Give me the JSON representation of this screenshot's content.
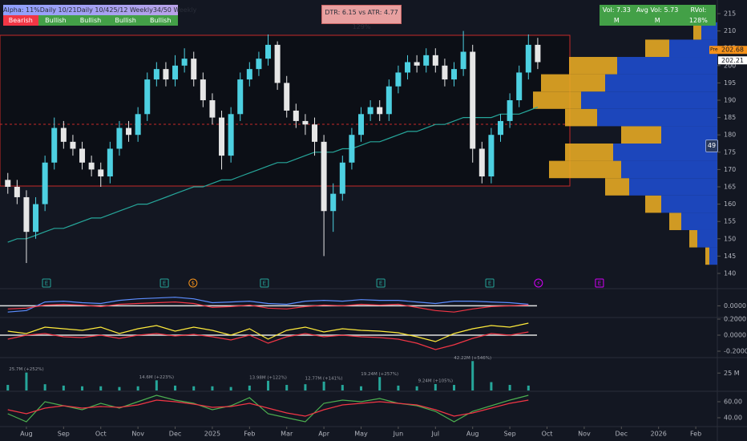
{
  "header": {
    "indicators": [
      "Alpha: 11%",
      "Daily 10/21",
      "Daily 10/42",
      "5/12 Weekly",
      "34/50 Weekly"
    ],
    "signals": [
      {
        "label": "Bearish",
        "color": "#f23645"
      },
      {
        "label": "Bullish",
        "color": "#43a047"
      },
      {
        "label": "Bullish",
        "color": "#43a047"
      },
      {
        "label": "Bullish",
        "color": "#43a047"
      },
      {
        "label": "Bullish",
        "color": "#43a047"
      }
    ],
    "dtr": "DTR: 6.15 vs ATR: 4.77 129%",
    "volume_stats": [
      "Vol: 7.33 M",
      "Avg Vol: 5.73 M",
      "RVol: 128%"
    ],
    "badge": 49,
    "pre_label": "Pre"
  },
  "chart_data": [
    {
      "type": "candlestick",
      "x": [
        -0.5,
        -0.25,
        0,
        0.25,
        0.5,
        0.75,
        1,
        1.25,
        1.5,
        1.75,
        2,
        2.25,
        2.5,
        2.75,
        3,
        3.25,
        3.5,
        3.75,
        4,
        4.25,
        4.5,
        4.75,
        5,
        5.25,
        5.5,
        5.75,
        6,
        6.25,
        6.5,
        6.75,
        7,
        7.25,
        7.5,
        7.75,
        8,
        8.25,
        8.5,
        8.75,
        9,
        9.25,
        9.5,
        9.75,
        10,
        10.25,
        10.5,
        10.75,
        11,
        11.25,
        11.5,
        11.75,
        12,
        12.25,
        12.5,
        12.75,
        13,
        13.25,
        13.5,
        13.75
      ],
      "open": [
        167,
        165,
        162,
        152,
        160,
        172,
        182,
        178,
        176,
        172,
        170,
        168,
        176,
        182,
        180,
        186,
        196,
        199,
        196,
        200,
        202,
        196,
        190,
        185,
        174,
        186,
        196,
        199,
        202,
        206,
        195,
        187,
        184,
        183,
        178,
        158,
        163,
        172,
        180,
        186,
        188,
        186,
        194,
        198,
        201,
        200,
        203,
        200,
        196,
        199,
        204,
        176,
        168,
        180,
        184,
        190,
        198,
        206
      ],
      "high": [
        169,
        167,
        164,
        162,
        174,
        185,
        184,
        180,
        178,
        174,
        172,
        178,
        184,
        184,
        188,
        198,
        201,
        201,
        203,
        205,
        204,
        198,
        192,
        187,
        188,
        198,
        201,
        204,
        209,
        207,
        197,
        189,
        186,
        185,
        180,
        166,
        174,
        182,
        188,
        190,
        190,
        196,
        200,
        203,
        203,
        205,
        205,
        202,
        201,
        210,
        206,
        178,
        182,
        186,
        192,
        200,
        209,
        208
      ],
      "low": [
        163,
        160,
        143,
        150,
        158,
        170,
        176,
        174,
        170,
        168,
        165,
        166,
        174,
        178,
        178,
        184,
        194,
        194,
        194,
        198,
        194,
        188,
        183,
        170,
        172,
        184,
        194,
        197,
        200,
        193,
        185,
        182,
        180,
        174,
        145,
        152,
        161,
        170,
        178,
        184,
        184,
        184,
        192,
        196,
        198,
        198,
        198,
        194,
        194,
        197,
        172,
        166,
        166,
        178,
        182,
        188,
        196,
        199
      ],
      "close": [
        165,
        162,
        152,
        160,
        172,
        182,
        178,
        176,
        172,
        170,
        168,
        176,
        182,
        180,
        186,
        196,
        199,
        196,
        200,
        202,
        196,
        190,
        185,
        174,
        186,
        196,
        199,
        202,
        206,
        195,
        187,
        184,
        183,
        178,
        158,
        163,
        172,
        180,
        186,
        188,
        186,
        194,
        198,
        201,
        200,
        203,
        200,
        196,
        199,
        204,
        176,
        168,
        180,
        184,
        190,
        198,
        206,
        201
      ],
      "up_color": "#4dd0e1",
      "down_color": "#e6e6e6",
      "series": [
        {
          "color": "#26a69a",
          "values": [
            149,
            150,
            150,
            151,
            152,
            153,
            153,
            154,
            155,
            156,
            156,
            157,
            158,
            159,
            160,
            160,
            161,
            162,
            163,
            164,
            165,
            165,
            166,
            167,
            167,
            168,
            169,
            170,
            171,
            172,
            172,
            173,
            174,
            175,
            175,
            175,
            176,
            176,
            177,
            178,
            178,
            179,
            180,
            181,
            181,
            182,
            183,
            183,
            184,
            185,
            185,
            185,
            185,
            186,
            186,
            186,
            187,
            188
          ]
        }
      ],
      "xlim": [
        -0.71,
        18.58
      ],
      "xticks": [
        {
          "value": 0,
          "label": "Aug"
        },
        {
          "value": 1,
          "label": "Sep"
        },
        {
          "value": 2,
          "label": "Oct"
        },
        {
          "value": 3,
          "label": "Nov"
        },
        {
          "value": 4,
          "label": "Dec"
        },
        {
          "value": 5,
          "label": "2025"
        },
        {
          "value": 6,
          "label": "Feb"
        },
        {
          "value": 7,
          "label": "Mar"
        },
        {
          "value": 8,
          "label": "Apr"
        },
        {
          "value": 9,
          "label": "May"
        },
        {
          "value": 10,
          "label": "Jun"
        },
        {
          "value": 11,
          "label": "Jul"
        },
        {
          "value": 12,
          "label": "Aug"
        },
        {
          "value": 13,
          "label": "Sep"
        },
        {
          "value": 14,
          "label": "Oct"
        },
        {
          "value": 15,
          "label": "Nov"
        },
        {
          "value": 16,
          "label": "Dec"
        },
        {
          "value": 17,
          "label": "2026"
        },
        {
          "value": 18,
          "label": "Feb"
        }
      ],
      "ylim": [
        139.07,
        218.94
      ],
      "yticks": [
        140,
        145,
        150,
        155,
        160,
        165,
        170,
        175,
        180,
        185,
        190,
        195,
        200,
        205,
        210,
        215
      ],
      "price_tags": [
        {
          "value": 202.68,
          "color": "#f7931a"
        },
        {
          "value": 202.21,
          "color": "#ffffff"
        }
      ],
      "events": [
        {
          "label": "E",
          "x": 0.54,
          "color": "#26a69a"
        },
        {
          "label": "E",
          "x": 3.71,
          "color": "#26a69a"
        },
        {
          "label": "$",
          "x": 4.48,
          "color": "#f7931a"
        },
        {
          "label": "E",
          "x": 6.4,
          "color": "#26a69a"
        },
        {
          "label": "E",
          "x": 9.53,
          "color": "#26a69a"
        },
        {
          "label": "E",
          "x": 12.46,
          "color": "#26a69a"
        },
        {
          "label": "⚡",
          "x": 13.77,
          "color": "#d500f9"
        },
        {
          "label": "E",
          "x": 15.41,
          "color": "#d500f9"
        }
      ],
      "volume_profile": {
        "levels": [
          145,
          150,
          155,
          160,
          165,
          170,
          175,
          180,
          185,
          190,
          195,
          200,
          205,
          210
        ],
        "series": [
          {
            "color": "#1e4fd6",
            "values": [
              10,
              25,
              45,
              70,
              110,
              120,
              130,
              70,
              150,
              170,
              140,
              125,
              60,
              20
            ]
          },
          {
            "color": "#e5a823",
            "values": [
              5,
              10,
              15,
              20,
              30,
              90,
              60,
              50,
              40,
              60,
              80,
              60,
              30,
              10
            ]
          }
        ],
        "xlim": [
          0,
          225
        ]
      }
    },
    {
      "type": "line",
      "x": [
        -0.5,
        0,
        0.5,
        1,
        1.5,
        2,
        2.5,
        3,
        3.5,
        4,
        4.5,
        5,
        5.5,
        6,
        6.5,
        7,
        7.5,
        8,
        8.5,
        9,
        9.5,
        10,
        10.5,
        11,
        11.5,
        12,
        12.5,
        13,
        13.5
      ],
      "xlim": [
        -0.71,
        18.58
      ],
      "series": [
        {
          "color": "#5c8dff",
          "values": [
            -0.008,
            -0.006,
            0.005,
            0.006,
            0.004,
            0.003,
            0.007,
            0.009,
            0.01,
            0.011,
            0.009,
            0.004,
            0.005,
            0.006,
            0.003,
            0.002,
            0.006,
            0.007,
            0.006,
            0.008,
            0.007,
            0.007,
            0.005,
            0.003,
            0.006,
            0.006,
            0.005,
            0.004,
            0.002
          ]
        },
        {
          "color": "#f23645",
          "values": [
            -0.004,
            -0.003,
            0.001,
            0.002,
            0.001,
            -0.001,
            0.002,
            0.003,
            0.004,
            0.005,
            0.003,
            -0.002,
            -0.001,
            0.001,
            -0.003,
            -0.004,
            -0.001,
            0.001,
            0,
            0.002,
            0.001,
            0.002,
            -0.002,
            -0.006,
            -0.008,
            -0.004,
            -0.001,
            0,
            0.001
          ]
        }
      ],
      "ylim": [
        -0.015,
        0.02
      ],
      "yticks": [
        {
          "value": 0,
          "label": "0.0000"
        }
      ]
    },
    {
      "type": "line",
      "x": [
        -0.5,
        0,
        0.5,
        1,
        1.5,
        2,
        2.5,
        3,
        3.5,
        4,
        4.5,
        5,
        5.5,
        6,
        6.5,
        7,
        7.5,
        8,
        8.5,
        9,
        9.5,
        10,
        10.5,
        11,
        11.5,
        12,
        12.5,
        13,
        13.5
      ],
      "xlim": [
        -0.71,
        18.58
      ],
      "series": [
        {
          "color": "#ffeb3b",
          "values": [
            0.05,
            0.02,
            0.1,
            0.08,
            0.06,
            0.1,
            0.02,
            0.08,
            0.12,
            0.05,
            0.1,
            0.06,
            0,
            0.08,
            -0.05,
            0.06,
            0.1,
            0.04,
            0.08,
            0.06,
            0.05,
            0.03,
            -0.02,
            -0.08,
            0.02,
            0.08,
            0.12,
            0.1,
            0.15
          ]
        },
        {
          "color": "#f23645",
          "values": [
            -0.05,
            0,
            0.02,
            -0.02,
            -0.03,
            0,
            -0.04,
            0,
            0.02,
            -0.01,
            0.01,
            -0.02,
            -0.06,
            0,
            -0.1,
            -0.02,
            0.02,
            -0.02,
            0,
            -0.02,
            -0.03,
            -0.05,
            -0.1,
            -0.18,
            -0.12,
            -0.04,
            0.02,
            0,
            0.04
          ]
        }
      ],
      "ylim": [
        -0.28,
        0.21
      ],
      "yticks": [
        {
          "value": 0.2,
          "label": "0.2000"
        },
        {
          "value": 0,
          "label": "0.0000"
        },
        {
          "value": -0.2,
          "label": "-0.2000"
        }
      ]
    },
    {
      "type": "bar",
      "x": [
        -0.5,
        0,
        0.5,
        1,
        1.5,
        2,
        2.5,
        3,
        3.5,
        4,
        4.5,
        5,
        5.5,
        6,
        6.5,
        7,
        7.5,
        8,
        8.5,
        9,
        9.5,
        10,
        10.5,
        11,
        11.5,
        12,
        12.5,
        13,
        13.5
      ],
      "xlim": [
        -0.71,
        18.58
      ],
      "values": [
        8,
        25.7,
        9,
        7,
        6,
        6,
        5,
        6,
        14.6,
        7,
        6,
        6,
        5,
        7,
        13.98,
        8,
        9,
        12.77,
        8,
        6,
        19.24,
        7,
        6,
        9.24,
        8,
        42.22,
        12,
        8,
        7
      ],
      "value_labels": [
        null,
        "25.7M (+252%)",
        null,
        null,
        null,
        null,
        null,
        null,
        "14.6M (+223%)",
        null,
        null,
        null,
        null,
        null,
        "13.98M (+122%)",
        null,
        null,
        "12.77M (+141%)",
        null,
        null,
        "19.24M (+257%)",
        null,
        null,
        "9.24M (+105%)",
        null,
        "42.22M (+546%)",
        null,
        null,
        null
      ],
      "color": "#26a69a",
      "ylim": [
        0,
        46
      ],
      "yticks": [
        {
          "value": 25,
          "label": "25 M"
        }
      ]
    },
    {
      "type": "line",
      "x": [
        -0.5,
        0,
        0.5,
        1,
        1.5,
        2,
        2.5,
        3,
        3.5,
        4,
        4.5,
        5,
        5.5,
        6,
        6.5,
        7,
        7.5,
        8,
        8.5,
        9,
        9.5,
        10,
        10.5,
        11,
        11.5,
        12,
        12.5,
        13,
        13.5
      ],
      "xlim": [
        -0.71,
        18.58
      ],
      "series": [
        {
          "color": "#4caf50",
          "values": [
            45,
            35,
            60,
            55,
            50,
            58,
            52,
            60,
            68,
            62,
            58,
            50,
            55,
            65,
            45,
            40,
            35,
            58,
            62,
            60,
            64,
            58,
            55,
            48,
            35,
            48,
            55,
            62,
            68
          ]
        },
        {
          "color": "#f23645",
          "values": [
            50,
            45,
            52,
            55,
            52,
            54,
            53,
            56,
            62,
            60,
            57,
            53,
            54,
            58,
            52,
            46,
            42,
            50,
            56,
            58,
            60,
            58,
            56,
            50,
            42,
            46,
            52,
            58,
            62
          ]
        }
      ],
      "ylim": [
        29,
        72
      ],
      "yticks": [
        {
          "value": 60,
          "label": "60.00"
        },
        {
          "value": 40,
          "label": "40.00"
        }
      ]
    }
  ]
}
